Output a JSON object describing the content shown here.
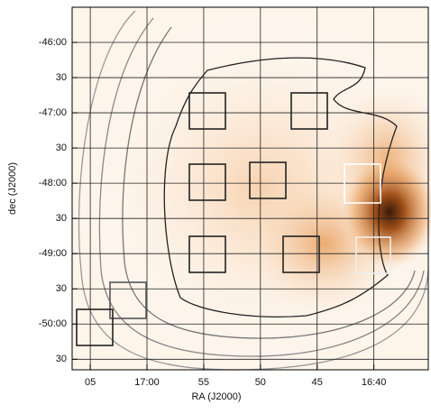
{
  "chart_data": {
    "type": "image",
    "xlabel": "RA (J2000)",
    "ylabel": "dec (J2000)",
    "xlim": [
      1026.6,
      995.2
    ],
    "ylim": [
      -50.65,
      -45.5
    ],
    "xticks": [
      {
        "value": 1025,
        "label": "05"
      },
      {
        "value": 1020,
        "label": "17:00"
      },
      {
        "value": 1015,
        "label": "55"
      },
      {
        "value": 1010,
        "label": "50"
      },
      {
        "value": 1005,
        "label": "45"
      },
      {
        "value": 1000,
        "label": "16:40"
      }
    ],
    "yticks": [
      {
        "value": -46.0,
        "label": "-46:00"
      },
      {
        "value": -46.5,
        "label": "30"
      },
      {
        "value": -47.0,
        "label": "-47:00"
      },
      {
        "value": -47.5,
        "label": "30"
      },
      {
        "value": -48.0,
        "label": "-48:00"
      },
      {
        "value": -48.5,
        "label": "30"
      },
      {
        "value": -49.0,
        "label": "-49:00"
      },
      {
        "value": -49.5,
        "label": "30"
      },
      {
        "value": -50.0,
        "label": "-50:00"
      },
      {
        "value": -50.5,
        "label": "30"
      }
    ],
    "grid": true
  }
}
